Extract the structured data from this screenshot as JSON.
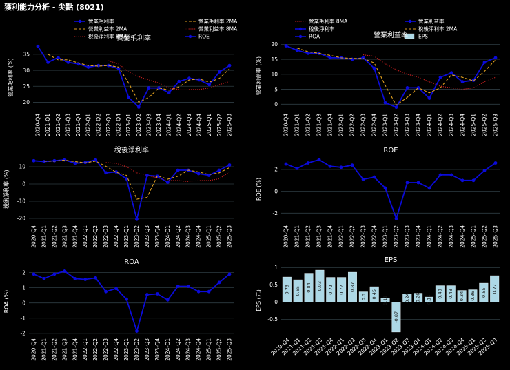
{
  "page_title": "獲利能力分析 - 尖點 (8021)",
  "colors": {
    "bg": "#000000",
    "grid": "#2e3c42",
    "primary": "#0b0bd9",
    "ma2": "#e0a020",
    "ma8": "#cc2020",
    "eps_bar": "#add8e6",
    "text": "#ffffff"
  },
  "legend": [
    {
      "label": "營業毛利率",
      "style": "line-marker",
      "color": "#0b0bd9"
    },
    {
      "label": "營業毛利率 2MA",
      "style": "dash",
      "color": "#e0a020"
    },
    {
      "label": "營業毛利率 8MA",
      "style": "dot",
      "color": "#cc2020"
    },
    {
      "label": "營業利益率",
      "style": "line-marker",
      "color": "#0b0bd9"
    },
    {
      "label": "營業利益率 2MA",
      "style": "dash",
      "color": "#e0a020"
    },
    {
      "label": "營業利益率 8MA",
      "style": "dot",
      "color": "#cc2020"
    },
    {
      "label": "稅後淨利率",
      "style": "line-marker",
      "color": "#0b0bd9"
    },
    {
      "label": "稅後淨利率 2MA",
      "style": "dash",
      "color": "#e0a020"
    },
    {
      "label": "稅後淨利率 8MA",
      "style": "dot",
      "color": "#cc2020"
    },
    {
      "label": "ROE",
      "style": "line-marker",
      "color": "#0b0bd9"
    },
    {
      "label": "ROA",
      "style": "line-marker",
      "color": "#0b0bd9"
    },
    {
      "label": "EPS",
      "style": "box",
      "color": "#add8e6"
    }
  ],
  "chart_data": [
    {
      "type": "line",
      "title": "營業毛利率",
      "ylabel": "營業毛利率 (%)",
      "ylim": [
        17.5,
        38
      ],
      "yticks": [
        20,
        25,
        30,
        35
      ],
      "categories": [
        "2020-Q4",
        "2021-Q1",
        "2021-Q2",
        "2021-Q3",
        "2021-Q4",
        "2022-Q1",
        "2022-Q2",
        "2022-Q3",
        "2022-Q4",
        "2023-Q1",
        "2023-Q2",
        "2023-Q3",
        "2023-Q4",
        "2024-Q1",
        "2024-Q2",
        "2024-Q3",
        "2024-Q4",
        "2025-Q1",
        "2025-Q2",
        "2025-Q3"
      ],
      "series": [
        {
          "name": "營業毛利率",
          "style": "line-marker",
          "values": [
            37.5,
            32.5,
            34.0,
            32.5,
            32.0,
            31.0,
            31.5,
            31.5,
            30.5,
            21.5,
            18.5,
            24.5,
            24.5,
            23.0,
            26.5,
            27.5,
            27.0,
            25.5,
            29.5,
            31.5
          ]
        },
        {
          "name": "營業毛利率 2MA",
          "style": "dash",
          "values": [
            null,
            35.0,
            33.3,
            33.3,
            32.3,
            31.5,
            31.3,
            31.5,
            31.0,
            26.0,
            20.0,
            21.5,
            24.5,
            23.8,
            24.8,
            27.0,
            27.3,
            26.3,
            27.5,
            30.5
          ]
        },
        {
          "name": "營業毛利率 8MA",
          "style": "dot",
          "values": [
            null,
            null,
            null,
            null,
            null,
            null,
            null,
            33.0,
            32.0,
            29.5,
            28.0,
            27.0,
            26.0,
            24.5,
            24.0,
            24.0,
            24.0,
            24.5,
            25.5,
            26.5
          ]
        }
      ]
    },
    {
      "type": "line",
      "title": "營業利益率",
      "ylabel": "營業利益率 (%)",
      "ylim": [
        -2,
        21
      ],
      "yticks": [
        0,
        5,
        10,
        15,
        20
      ],
      "categories": [
        "2020-Q4",
        "2021-Q1",
        "2021-Q2",
        "2021-Q3",
        "2021-Q4",
        "2022-Q1",
        "2022-Q2",
        "2022-Q3",
        "2022-Q4",
        "2023-Q1",
        "2023-Q2",
        "2023-Q3",
        "2023-Q4",
        "2024-Q1",
        "2024-Q2",
        "2024-Q3",
        "2024-Q4",
        "2025-Q1",
        "2025-Q2",
        "2025-Q3"
      ],
      "series": [
        {
          "name": "營業利益率",
          "style": "line-marker",
          "values": [
            19.5,
            18.0,
            17.0,
            17.0,
            15.5,
            15.5,
            15.0,
            15.5,
            12.0,
            0.5,
            -1.0,
            5.5,
            5.5,
            2.0,
            9.0,
            10.5,
            7.5,
            8.0,
            14.0,
            15.5
          ]
        },
        {
          "name": "營業利益率 2MA",
          "style": "dash",
          "values": [
            null,
            18.8,
            17.5,
            17.0,
            16.3,
            15.5,
            15.3,
            15.3,
            13.8,
            6.3,
            -0.3,
            2.3,
            5.5,
            3.8,
            5.5,
            9.8,
            9.0,
            7.8,
            11.0,
            14.8
          ]
        },
        {
          "name": "營業利益率 8MA",
          "style": "dot",
          "values": [
            null,
            null,
            null,
            null,
            null,
            null,
            null,
            16.5,
            16.0,
            13.5,
            11.5,
            10.0,
            9.0,
            7.5,
            6.0,
            5.5,
            5.0,
            5.5,
            7.5,
            9.0
          ]
        }
      ]
    },
    {
      "type": "line",
      "title": "稅後淨利率",
      "ylabel": "稅後淨利率 (%)",
      "ylim": [
        -22,
        16
      ],
      "yticks": [
        -20,
        -10,
        0,
        10
      ],
      "categories": [
        "2020-Q4",
        "2021-Q1",
        "2021-Q2",
        "2021-Q3",
        "2021-Q4",
        "2022-Q1",
        "2022-Q2",
        "2022-Q3",
        "2022-Q4",
        "2023-Q1",
        "2023-Q2",
        "2023-Q3",
        "2023-Q4",
        "2024-Q1",
        "2024-Q2",
        "2024-Q3",
        "2024-Q4",
        "2025-Q1",
        "2025-Q2",
        "2025-Q3"
      ],
      "series": [
        {
          "name": "稅後淨利率",
          "style": "line-marker",
          "values": [
            13.5,
            13.0,
            13.5,
            14.0,
            12.0,
            12.5,
            14.0,
            6.5,
            7.0,
            3.0,
            -20.5,
            5.0,
            4.5,
            1.0,
            8.0,
            8.0,
            6.0,
            5.0,
            8.0,
            11.0
          ]
        },
        {
          "name": "稅後淨利率 2MA",
          "style": "dash",
          "values": [
            null,
            13.3,
            13.3,
            13.8,
            13.0,
            12.3,
            13.3,
            10.3,
            6.8,
            5.0,
            -8.8,
            -7.8,
            4.8,
            2.8,
            4.5,
            8.0,
            7.0,
            5.5,
            6.5,
            9.5
          ]
        },
        {
          "name": "稅後淨利率 8MA",
          "style": "dot",
          "values": [
            null,
            null,
            null,
            null,
            null,
            null,
            null,
            12.5,
            12.0,
            10.0,
            6.5,
            5.0,
            3.5,
            2.0,
            2.0,
            1.5,
            2.0,
            2.0,
            3.0,
            7.0
          ]
        }
      ]
    },
    {
      "type": "line",
      "title": "ROE",
      "ylabel": "ROE (%)",
      "ylim": [
        -2.8,
        3.2
      ],
      "yticks": [
        -2,
        0,
        2
      ],
      "categories": [
        "2020-Q4",
        "2021-Q1",
        "2021-Q2",
        "2021-Q3",
        "2021-Q4",
        "2022-Q1",
        "2022-Q2",
        "2022-Q3",
        "2022-Q4",
        "2023-Q1",
        "2023-Q2",
        "2023-Q3",
        "2023-Q4",
        "2024-Q1",
        "2024-Q2",
        "2024-Q3",
        "2024-Q4",
        "2025-Q1",
        "2025-Q2",
        "2025-Q3"
      ],
      "series": [
        {
          "name": "ROE",
          "style": "line-marker",
          "values": [
            2.5,
            2.1,
            2.6,
            2.9,
            2.3,
            2.2,
            2.4,
            1.1,
            1.3,
            0.3,
            -2.5,
            0.8,
            0.8,
            0.3,
            1.5,
            1.5,
            1.0,
            1.0,
            1.9,
            2.6
          ]
        }
      ]
    },
    {
      "type": "line",
      "title": "ROA",
      "ylabel": "ROA (%)",
      "ylim": [
        -2.1,
        2.3
      ],
      "yticks": [
        -2,
        -1,
        0,
        1,
        2
      ],
      "categories": [
        "2020-Q4",
        "2021-Q1",
        "2021-Q2",
        "2021-Q3",
        "2021-Q4",
        "2022-Q1",
        "2022-Q2",
        "2022-Q3",
        "2022-Q4",
        "2023-Q1",
        "2023-Q2",
        "2023-Q3",
        "2023-Q4",
        "2024-Q1",
        "2024-Q2",
        "2024-Q3",
        "2024-Q4",
        "2025-Q1",
        "2025-Q2",
        "2025-Q3"
      ],
      "series": [
        {
          "name": "ROA",
          "style": "line-marker",
          "values": [
            1.9,
            1.6,
            1.9,
            2.1,
            1.6,
            1.55,
            1.65,
            0.75,
            0.95,
            0.25,
            -1.85,
            0.55,
            0.6,
            0.2,
            1.1,
            1.1,
            0.75,
            0.75,
            1.35,
            1.9
          ]
        }
      ]
    },
    {
      "type": "bar",
      "title": "EPS",
      "ylabel": "EPS (元)",
      "ylim": [
        -0.95,
        1.05
      ],
      "yticks": [
        -0.5,
        0,
        0.5,
        1
      ],
      "categories": [
        "2020-Q4",
        "2021-Q1",
        "2021-Q2",
        "2021-Q3",
        "2021-Q4",
        "2022-Q1",
        "2022-Q2",
        "2022-Q3",
        "2022-Q4",
        "2023-Q1",
        "2023-Q2",
        "2023-Q3",
        "2023-Q4",
        "2024-Q1",
        "2024-Q2",
        "2024-Q3",
        "2024-Q4",
        "2025-Q1",
        "2025-Q2",
        "2025-Q3"
      ],
      "values": [
        0.73,
        0.65,
        0.84,
        0.93,
        0.72,
        0.72,
        0.87,
        0.3,
        0.45,
        0.11,
        -0.87,
        0.24,
        0.26,
        0.15,
        0.48,
        0.48,
        0.34,
        0.36,
        0.55,
        0.77
      ],
      "labels": [
        "0.73",
        "0.65",
        "0.84",
        "0.93",
        "0.72",
        "0.72",
        "0.87",
        "0.3",
        "0.45",
        "0.11",
        "-0.87",
        "0.24",
        "0.26",
        "0.15",
        "0.48",
        "0.48",
        "0.34",
        "0.36",
        "0.55",
        "0.77"
      ]
    }
  ]
}
